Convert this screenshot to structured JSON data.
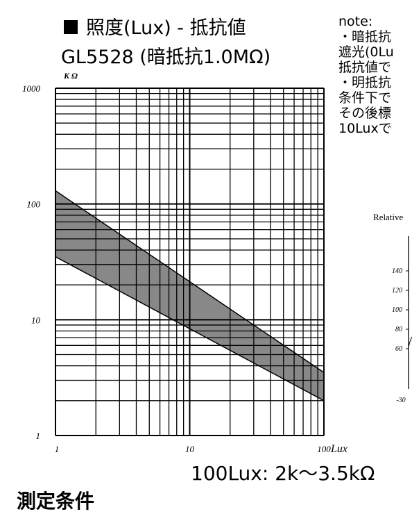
{
  "title": {
    "line1": "照度(Lux) - 抵抗値",
    "line2": "GL5528 (暗抵抗1.0MΩ)"
  },
  "note": {
    "heading": "note:",
    "lines": [
      "・暗抵抗",
      "遮光(0Lu",
      "抵抗値で",
      "・明抵抗",
      "条件下で",
      "その後標",
      "10Luxで"
    ]
  },
  "footer": {
    "value_text": "100Lux: 2k〜3.5kΩ",
    "section_heading_partial": "測定条件"
  },
  "chart_data": [
    {
      "type": "area",
      "scale": "log-log",
      "grid": true,
      "xlabel": "Lux",
      "ylabel": "K Ω",
      "xlim": [
        1,
        100
      ],
      "ylim": [
        1,
        1000
      ],
      "x_ticks": [
        "1",
        "10",
        "100"
      ],
      "y_ticks": [
        "1",
        "10",
        "100",
        "1000"
      ],
      "series": [
        {
          "x": [
            1,
            100
          ],
          "y": [
            130,
            3.5
          ]
        },
        {
          "x": [
            1,
            100
          ],
          "y": [
            35,
            2.0
          ]
        }
      ],
      "fill_color": "#888888"
    },
    {
      "type": "line",
      "partial": true,
      "title": "Relative",
      "y_ticks": [
        "140",
        "120",
        "100",
        "80",
        "60"
      ],
      "x_ticks": [
        "-30"
      ]
    }
  ]
}
